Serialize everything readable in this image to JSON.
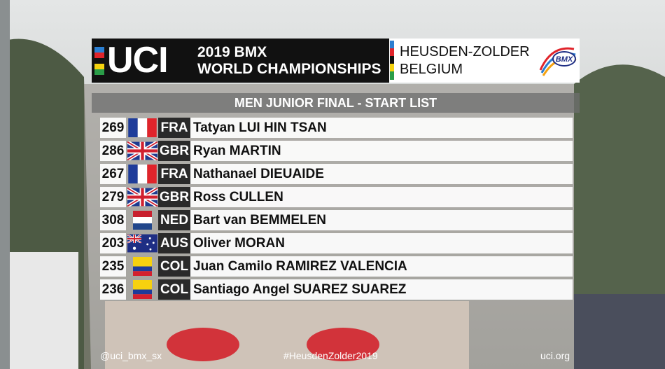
{
  "header": {
    "logo": "UCI",
    "title_line_1": "2019 BMX",
    "title_line_2": "WORLD CHAMPIONSHIPS",
    "location_line_1": "HEUSDEN-ZOLDER",
    "location_line_2": "BELGIUM"
  },
  "subtitle": "MEN JUNIOR FINAL - START LIST",
  "riders": [
    {
      "number": "269",
      "country": "FRA",
      "name": "Tatyan LUI HIN TSAN"
    },
    {
      "number": "286",
      "country": "GBR",
      "name": "Ryan MARTIN"
    },
    {
      "number": "267",
      "country": "FRA",
      "name": "Nathanael DIEUAIDE"
    },
    {
      "number": "279",
      "country": "GBR",
      "name": "Ross CULLEN"
    },
    {
      "number": "308",
      "country": "NED",
      "name": "Bart van BEMMELEN"
    },
    {
      "number": "203",
      "country": "AUS",
      "name": "Oliver MORAN"
    },
    {
      "number": "235",
      "country": "COL",
      "name": "Juan Camilo RAMIREZ VALENCIA"
    },
    {
      "number": "236",
      "country": "COL",
      "name": "Santiago Angel SUAREZ SUAREZ"
    }
  ],
  "footer": {
    "handle": "@uci_bmx_sx",
    "hashtag": "#HeusdenZolder2019",
    "website": "uci.org"
  }
}
